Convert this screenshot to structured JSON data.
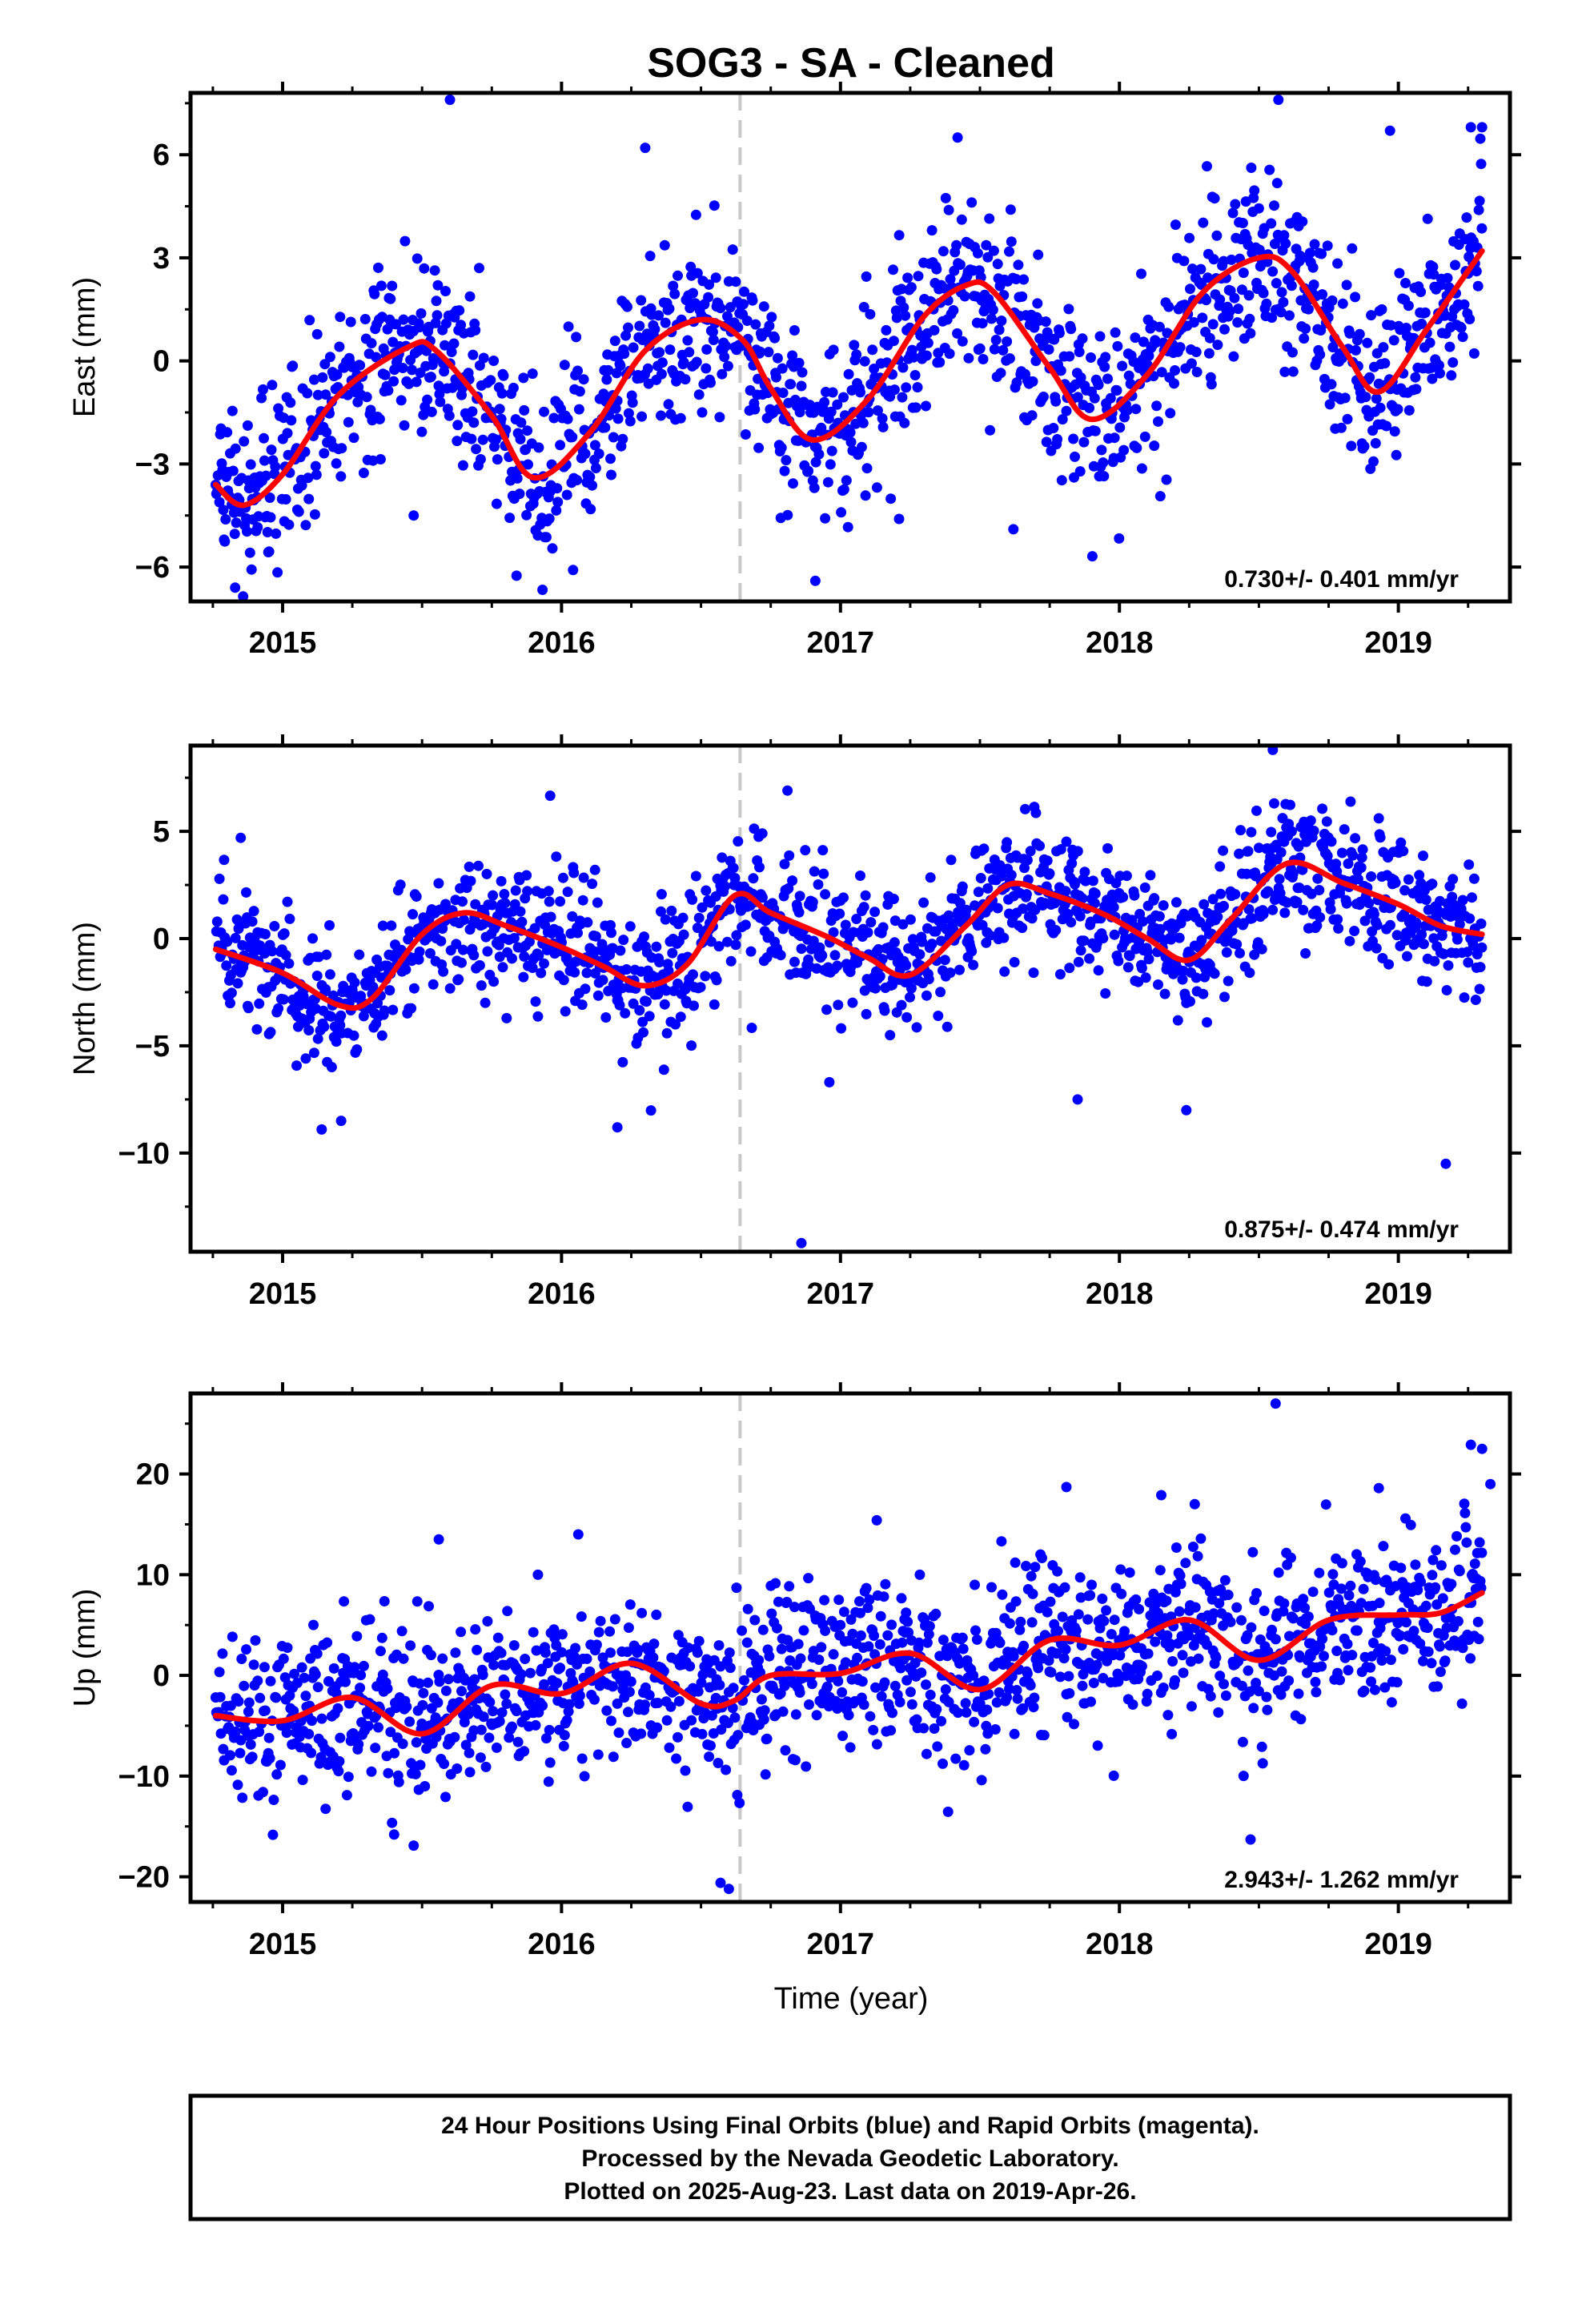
{
  "title": "SOG3  - SA - Cleaned",
  "colors": {
    "points": "#0000ff",
    "fit": "#ff0000",
    "marker": "#c8c8c8",
    "axes": "#000000"
  },
  "chart_data": [
    {
      "type": "scatter",
      "name": "east",
      "ylabel": "East (mm)",
      "rate_label": "0.730+/- 0.401 mm/yr",
      "xlim": [
        2014.67,
        2019.4
      ],
      "ylim": [
        -7.0,
        7.8
      ],
      "yticks": [
        6,
        3,
        0,
        -3,
        -6
      ],
      "ytick_labels": [
        "6",
        "3",
        "0",
        "−3",
        "−6"
      ],
      "xticks": [
        2015,
        2016,
        2017,
        2018,
        2019
      ],
      "xtick_labels": [
        "2015",
        "2016",
        "2017",
        "2018",
        "2019"
      ],
      "vline_x": 2016.64,
      "point_sigma": 1.3,
      "outliers": [
        [
          2015.6,
          7.6
        ],
        [
          2016.3,
          6.2
        ],
        [
          2017.42,
          6.5
        ],
        [
          2018.57,
          7.6
        ],
        [
          2018.97,
          6.7
        ],
        [
          2019.26,
          6.8
        ],
        [
          2019.3,
          6.8
        ],
        [
          2014.83,
          -6.6
        ],
        [
          2016.91,
          -6.4
        ],
        [
          2017.62,
          -4.9
        ],
        [
          2015.47,
          -4.5
        ],
        [
          2017.21,
          -4.6
        ]
      ],
      "fit": {
        "x": [
          2014.76,
          2014.86,
          2015.0,
          2015.2,
          2015.45,
          2015.55,
          2015.75,
          2015.9,
          2016.1,
          2016.3,
          2016.5,
          2016.65,
          2016.75,
          2016.9,
          2017.1,
          2017.3,
          2017.45,
          2017.55,
          2017.75,
          2017.9,
          2018.1,
          2018.3,
          2018.5,
          2018.62,
          2018.8,
          2018.93,
          2019.1,
          2019.3
        ],
        "y": [
          -3.6,
          -4.2,
          -3.3,
          -1.0,
          0.4,
          0.3,
          -1.6,
          -3.4,
          -2.1,
          0.3,
          1.2,
          0.6,
          -0.8,
          -2.3,
          -1.1,
          1.3,
          2.2,
          2.0,
          -0.2,
          -1.7,
          -0.4,
          2.0,
          3.0,
          2.6,
          0.4,
          -0.9,
          0.9,
          3.2
        ]
      }
    },
    {
      "type": "scatter",
      "name": "north",
      "ylabel": "North (mm)",
      "rate_label": "0.875+/- 0.474 mm/yr",
      "xlim": [
        2014.67,
        2019.4
      ],
      "ylim": [
        -14.6,
        9.0
      ],
      "yticks": [
        5,
        0,
        -5,
        -10
      ],
      "ytick_labels": [
        "5",
        "0",
        "−5",
        "−10"
      ],
      "xticks": [
        2015,
        2016,
        2017,
        2018,
        2019
      ],
      "xtick_labels": [
        "2015",
        "2016",
        "2017",
        "2018",
        "2019"
      ],
      "vline_x": 2016.64,
      "point_sigma": 1.5,
      "outliers": [
        [
          2014.85,
          4.7
        ],
        [
          2016.12,
          3.2
        ],
        [
          2016.2,
          -8.8
        ],
        [
          2016.81,
          6.9
        ],
        [
          2016.96,
          -6.7
        ],
        [
          2017.85,
          -7.5
        ],
        [
          2018.24,
          -8.0
        ],
        [
          2018.55,
          8.8
        ],
        [
          2019.17,
          -10.5
        ],
        [
          2016.86,
          -14.2
        ],
        [
          2015.14,
          -8.9
        ],
        [
          2015.21,
          -8.5
        ],
        [
          2016.72,
          4.9
        ]
      ],
      "fit": {
        "x": [
          2014.76,
          2015.0,
          2015.2,
          2015.32,
          2015.5,
          2015.65,
          2015.8,
          2016.0,
          2016.15,
          2016.3,
          2016.45,
          2016.62,
          2016.75,
          2016.95,
          2017.1,
          2017.25,
          2017.45,
          2017.6,
          2017.75,
          2017.95,
          2018.1,
          2018.25,
          2018.4,
          2018.6,
          2018.8,
          2019.0,
          2019.15,
          2019.3
        ],
        "y": [
          -0.5,
          -1.6,
          -3.1,
          -2.8,
          0.2,
          1.2,
          0.6,
          -0.4,
          -1.3,
          -2.2,
          -1.2,
          2.0,
          1.2,
          0.1,
          -0.9,
          -1.7,
          0.6,
          2.5,
          2.1,
          1.1,
          0.0,
          -1.0,
          0.9,
          3.5,
          2.6,
          1.6,
          0.6,
          0.2
        ]
      }
    },
    {
      "type": "scatter",
      "name": "up",
      "ylabel": "Up (mm)",
      "xlabel": "Time (year)",
      "rate_label": "2.943+/- 1.262 mm/yr",
      "xlim": [
        2014.67,
        2019.4
      ],
      "ylim": [
        -22.5,
        28.0
      ],
      "yticks": [
        20,
        10,
        0,
        -10,
        -20
      ],
      "ytick_labels": [
        "20",
        "10",
        "0",
        "−10",
        "−20"
      ],
      "xticks": [
        2015,
        2016,
        2017,
        2018,
        2019
      ],
      "xtick_labels": [
        "2015",
        "2016",
        "2017",
        "2018",
        "2019"
      ],
      "vline_x": 2016.64,
      "point_sigma": 4.2,
      "outliers": [
        [
          2015.56,
          13.5
        ],
        [
          2016.06,
          14.0
        ],
        [
          2015.47,
          -16.9
        ],
        [
          2015.4,
          -15.8
        ],
        [
          2016.6,
          -21.2
        ],
        [
          2016.57,
          -20.6
        ],
        [
          2017.13,
          15.4
        ],
        [
          2017.81,
          18.7
        ],
        [
          2018.15,
          17.9
        ],
        [
          2018.27,
          17.0
        ],
        [
          2018.56,
          27.0
        ],
        [
          2018.47,
          -16.3
        ],
        [
          2019.26,
          22.9
        ],
        [
          2019.3,
          22.5
        ],
        [
          2018.93,
          18.6
        ],
        [
          2019.33,
          19.0
        ]
      ],
      "fit": {
        "x": [
          2014.76,
          2015.0,
          2015.25,
          2015.5,
          2015.75,
          2016.0,
          2016.25,
          2016.5,
          2016.62,
          2016.75,
          2017.0,
          2017.25,
          2017.5,
          2017.75,
          2018.0,
          2018.25,
          2018.5,
          2018.75,
          2019.0,
          2019.15,
          2019.3
        ],
        "y": [
          -4.0,
          -4.5,
          -2.2,
          -5.8,
          -1.0,
          -1.8,
          1.2,
          -2.8,
          -2.5,
          0.0,
          0.2,
          2.2,
          -1.4,
          3.5,
          3.0,
          5.5,
          1.5,
          5.5,
          6.0,
          6.2,
          8.2
        ]
      }
    }
  ],
  "footer": {
    "line1": "24 Hour Positions Using Final Orbits (blue) and Rapid Orbits (magenta).",
    "line2": "Processed by the Nevada Geodetic Laboratory.",
    "line3": "Plotted on 2025-Aug-23. Last data on 2019-Apr-26."
  }
}
